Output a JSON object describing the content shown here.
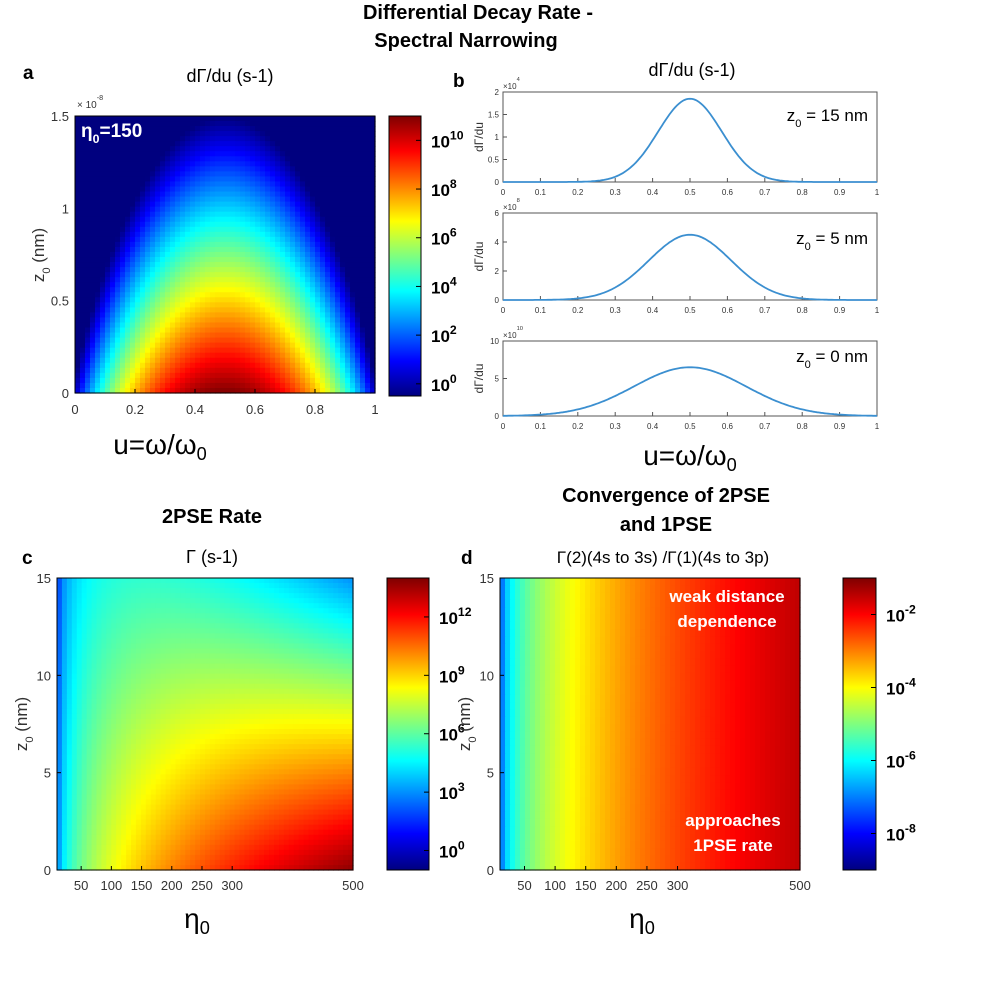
{
  "figure_title": [
    "Differential Decay Rate -",
    "Spectral Narrowing"
  ],
  "panels": {
    "a": {
      "letter": "a",
      "subtitle": "dΓ/du (s-1)"
    },
    "b": {
      "letter": "b",
      "subtitle": "dΓ/du (s-1)"
    },
    "c": {
      "letter": "c",
      "header": "2PSE Rate",
      "subtitle": "Γ (s-1)"
    },
    "d": {
      "letter": "d",
      "header": [
        "Convergence of 2PSE",
        "and 1PSE"
      ],
      "subtitle": "Γ(2)(4s to 3s) /Γ(1)(4s to 3p)"
    }
  },
  "colors": {
    "colormap": [
      "#00007f",
      "#0000ff",
      "#007fff",
      "#00ffff",
      "#7fff7f",
      "#ffff00",
      "#ff7f00",
      "#ff0000",
      "#7f0000"
    ],
    "curve": "#3b8fd0",
    "axis": "#000000",
    "tick_text": "#333333",
    "annotation_white": "#ffffff"
  },
  "chart_data": [
    {
      "id": "a",
      "type": "heatmap",
      "title": "dΓ/du (s-1)",
      "xlabel": "u=ω/ω0",
      "ylabel": "z0 (nm)",
      "xlim": [
        0,
        1
      ],
      "ylim": [
        0,
        1.5e-08
      ],
      "x_ticks": [
        "0",
        "0.2",
        "0.4",
        "0.6",
        "0.8",
        "1"
      ],
      "y_ticks": [
        "0",
        "0.5",
        "1",
        "1.5"
      ],
      "y_exponent": "× 10-8",
      "annotation": "η0=150",
      "colorbar": {
        "scale": "log10",
        "range": [
          -0.5,
          11
        ],
        "ticks": [
          "100",
          "102",
          "104",
          "106",
          "108",
          "1010"
        ],
        "tick_exponents": [
          0,
          2,
          4,
          6,
          8,
          10
        ]
      }
    },
    {
      "id": "b",
      "type": "line",
      "xlabel": "u=ω/ω0",
      "ylabel": "dΓ/du",
      "x_ticks": [
        "0",
        "0.1",
        "0.2",
        "0.3",
        "0.4",
        "0.5",
        "0.6",
        "0.7",
        "0.8",
        "0.9",
        "1"
      ],
      "subplots": [
        {
          "label": "z0 = 15 nm",
          "exponent": "×104",
          "ylim": [
            0,
            2
          ],
          "y_ticks": [
            "0",
            "0.5",
            "1",
            "1.5",
            "2"
          ],
          "center": 0.5,
          "peak": 1.85,
          "width": 0.085,
          "x": [
            0.0,
            0.1,
            0.2,
            0.3,
            0.35,
            0.4,
            0.45,
            0.5,
            0.55,
            0.6,
            0.65,
            0.7,
            0.8,
            0.9,
            1.0
          ],
          "values": [
            0.0,
            0.0,
            0.0,
            0.1,
            0.32,
            0.93,
            1.55,
            1.85,
            1.55,
            0.93,
            0.32,
            0.1,
            0.0,
            0.0,
            0.0
          ]
        },
        {
          "label": "z0 = 5 nm",
          "exponent": "×108",
          "ylim": [
            0,
            6
          ],
          "y_ticks": [
            "0",
            "2",
            "4",
            "6"
          ],
          "center": 0.5,
          "peak": 4.5,
          "width": 0.11,
          "x": [
            0.0,
            0.1,
            0.2,
            0.3,
            0.4,
            0.5,
            0.6,
            0.7,
            0.8,
            0.9,
            1.0
          ],
          "values": [
            0.0,
            0.0,
            0.1,
            0.85,
            3.0,
            4.5,
            3.0,
            0.85,
            0.1,
            0.0,
            0.0
          ]
        },
        {
          "label": "z0 = 0 nm",
          "exponent": "×1010",
          "ylim": [
            0,
            10
          ],
          "y_ticks": [
            "0",
            "5",
            "10"
          ],
          "center": 0.5,
          "peak": 6.5,
          "width": 0.15,
          "x": [
            0.0,
            0.1,
            0.2,
            0.3,
            0.4,
            0.5,
            0.6,
            0.7,
            0.8,
            0.9,
            1.0
          ],
          "values": [
            0.0,
            0.15,
            0.88,
            2.7,
            5.3,
            6.5,
            5.3,
            2.7,
            0.88,
            0.15,
            0.0
          ]
        }
      ]
    },
    {
      "id": "c",
      "type": "heatmap",
      "title": "2PSE Rate",
      "subtitle": "Γ (s-1)",
      "xlabel": "η0",
      "ylabel": "z0 (nm)",
      "xlim": [
        10,
        500
      ],
      "ylim": [
        0,
        15
      ],
      "x_ticks": [
        50,
        100,
        150,
        200,
        250,
        300,
        500
      ],
      "y_ticks": [
        0,
        5,
        10,
        15
      ],
      "colorbar": {
        "scale": "log10",
        "range": [
          -1,
          14
        ],
        "ticks": [
          "100",
          "103",
          "106",
          "109",
          "1012"
        ],
        "tick_exponents": [
          0,
          3,
          6,
          9,
          12
        ]
      }
    },
    {
      "id": "d",
      "type": "heatmap",
      "title": "Convergence of 2PSE and 1PSE",
      "subtitle": "Γ(2)(4s to 3s) /Γ(1)(4s to 3p)",
      "xlabel": "η0",
      "ylabel": "z0 (nm)",
      "xlim": [
        10,
        500
      ],
      "ylim": [
        0,
        15
      ],
      "x_ticks": [
        50,
        100,
        150,
        200,
        250,
        300,
        500
      ],
      "y_ticks": [
        0,
        5,
        10,
        15
      ],
      "annotations": [
        "weak distance",
        "dependence",
        "approaches",
        "1PSE rate"
      ],
      "colorbar": {
        "scale": "log10",
        "range": [
          -9,
          -1
        ],
        "ticks": [
          "10-8",
          "10-6",
          "10-4",
          "10-2"
        ],
        "tick_exponents": [
          -8,
          -6,
          -4,
          -2
        ]
      }
    }
  ]
}
